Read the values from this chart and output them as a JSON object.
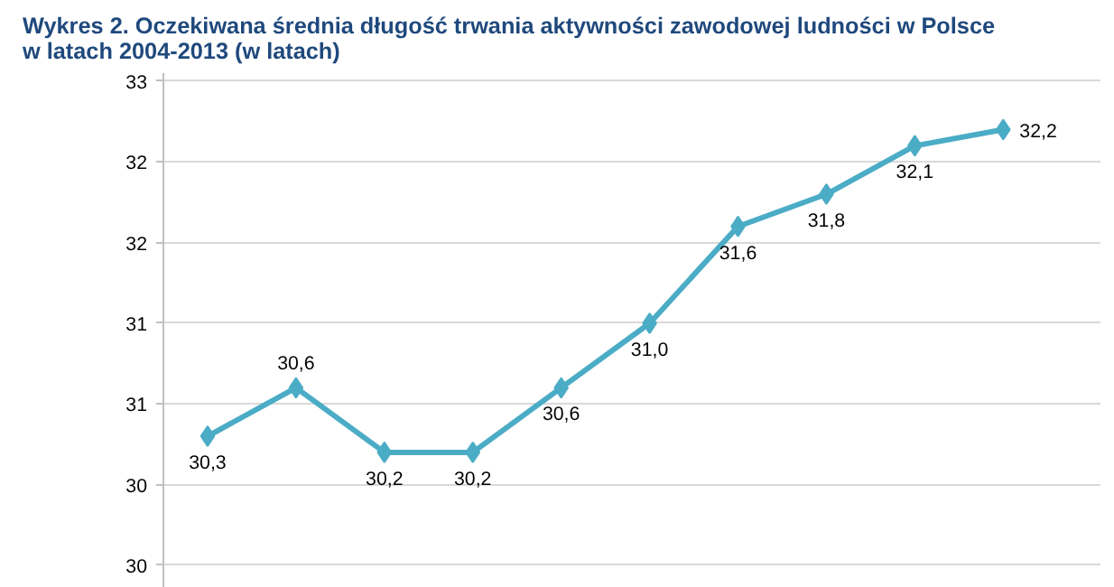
{
  "chart_data": {
    "type": "line",
    "title": "Wykres 2. Oczekiwana średnia długość trwania aktywności zawodowej ludności w Polsce\nw latach 2004-2013 (w latach)",
    "categories": [
      null,
      null,
      null,
      null,
      null,
      null,
      null,
      null,
      null,
      null
    ],
    "series": [
      {
        "color": "#4bacc6",
        "values": [
          30.3,
          30.6,
          30.2,
          30.2,
          30.6,
          31.0,
          31.6,
          31.8,
          32.1,
          32.2
        ],
        "value_labels": [
          "30,3",
          "30,6",
          "30,2",
          "30,2",
          "30,6",
          "31,0",
          "31,6",
          "31,8",
          "32,1",
          "32,2"
        ]
      }
    ],
    "ylim": [
      29.36,
      32.55
    ],
    "yticks": [
      {
        "value": 29.5,
        "label": "30"
      },
      {
        "value": 30,
        "label": "30"
      },
      {
        "value": 30.5,
        "label": "31"
      },
      {
        "value": 31,
        "label": "31"
      },
      {
        "value": 31.5,
        "label": "32"
      },
      {
        "value": 32,
        "label": "32"
      },
      {
        "value": 32.5,
        "label": "33"
      }
    ],
    "grid": "y",
    "marker": "diamond",
    "line_style": "solid",
    "tick_labels": "y"
  }
}
